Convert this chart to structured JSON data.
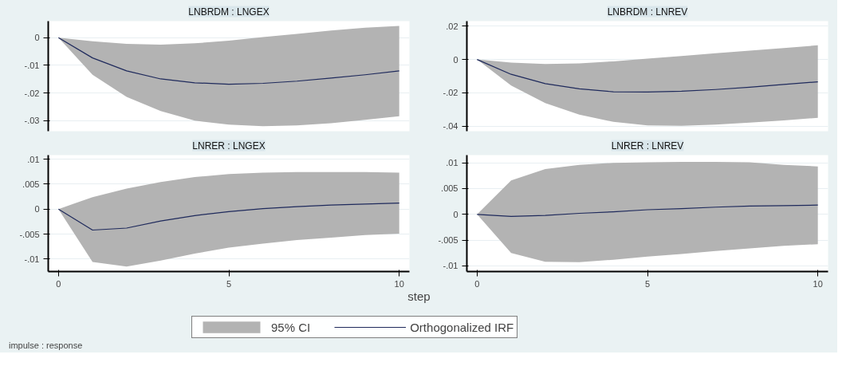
{
  "chart_data": [
    {
      "type": "line",
      "title": "LNBRDM : LNGEX",
      "x": [
        0,
        1,
        2,
        3,
        4,
        5,
        6,
        7,
        8,
        9,
        10
      ],
      "xlim": [
        -0.3,
        10.3
      ],
      "ylim": [
        -0.0338,
        0.006
      ],
      "yticks": [
        0,
        {
          "value": -0.01,
          "label": "-.01"
        },
        {
          "value": -0.02,
          "label": "-.02"
        },
        {
          "value": -0.03,
          "label": "-.03"
        }
      ],
      "tick_labels": "y",
      "grid": "y",
      "series": [
        {
          "type": "area",
          "color": "#b3b3b3",
          "values": [
            null,
            null,
            null,
            null,
            null,
            null,
            null,
            null,
            null,
            null,
            null
          ],
          "lower": [
            0,
            -0.0134,
            -0.0214,
            -0.0265,
            -0.03,
            -0.0314,
            -0.032,
            -0.0317,
            -0.0309,
            -0.0297,
            -0.0284
          ],
          "upper": [
            0,
            -0.0013,
            -0.0022,
            -0.0025,
            -0.002,
            -0.0011,
            0.0002,
            0.0014,
            0.0026,
            0.0036,
            0.0043
          ]
        },
        {
          "color": "#1f2a5c",
          "values": [
            0,
            -0.0073,
            -0.012,
            -0.0149,
            -0.0163,
            -0.0168,
            -0.0165,
            -0.0157,
            -0.0146,
            -0.0134,
            -0.012
          ]
        }
      ]
    },
    {
      "type": "line",
      "title": "LNBRDM : LNREV",
      "x": [
        0,
        1,
        2,
        3,
        4,
        5,
        6,
        7,
        8,
        9,
        10
      ],
      "xlim": [
        -0.3,
        10.3
      ],
      "ylim": [
        -0.043,
        0.023
      ],
      "yticks": [
        {
          "value": 0.02,
          "label": ".02"
        },
        0,
        {
          "value": -0.02,
          "label": "-.02"
        },
        {
          "value": -0.04,
          "label": "-.04"
        }
      ],
      "tick_labels": "y",
      "grid": "y",
      "series": [
        {
          "type": "area",
          "color": "#b3b3b3",
          "values": [
            null,
            null,
            null,
            null,
            null,
            null,
            null,
            null,
            null,
            null,
            null
          ],
          "lower": [
            0,
            -0.0156,
            -0.0261,
            -0.0331,
            -0.0374,
            -0.0395,
            -0.0398,
            -0.039,
            -0.0379,
            -0.0366,
            -0.035
          ],
          "upper": [
            0,
            -0.0019,
            -0.0027,
            -0.0024,
            -0.0011,
            0.0005,
            0.0021,
            0.0037,
            0.0053,
            0.0069,
            0.0085
          ]
        },
        {
          "color": "#1f2a5c",
          "values": [
            0,
            -0.0089,
            -0.0145,
            -0.0176,
            -0.0194,
            -0.0195,
            -0.019,
            -0.018,
            -0.0166,
            -0.015,
            -0.0134
          ]
        }
      ]
    },
    {
      "type": "line",
      "title": "LNRER : LNGEX",
      "xlabel": "step",
      "legend": "bottom",
      "annotations": [
        "impulse : response"
      ],
      "x": [
        0,
        1,
        2,
        3,
        4,
        5,
        6,
        7,
        8,
        9,
        10
      ],
      "xlim": [
        -0.3,
        10.3
      ],
      "xticks": [
        0,
        5,
        10
      ],
      "ylim": [
        -0.0125,
        0.0108
      ],
      "yticks": [
        {
          "value": 0.01,
          "label": ".01"
        },
        {
          "value": 0.005,
          "label": ".005"
        },
        0,
        {
          "value": -0.005,
          "label": "-.005"
        },
        {
          "value": -0.01,
          "label": "-.01"
        }
      ],
      "grid": "y",
      "series": [
        {
          "type": "area",
          "name": "95% CI",
          "color": "#b3b3b3",
          "values": [
            null,
            null,
            null,
            null,
            null,
            null,
            null,
            null,
            null,
            null,
            null
          ],
          "lower": [
            0,
            -0.0106,
            -0.0115,
            -0.0103,
            -0.0089,
            -0.0077,
            -0.0069,
            -0.0062,
            -0.0057,
            -0.0052,
            -0.0049
          ],
          "upper": [
            0,
            0.0024,
            0.0041,
            0.0054,
            0.0064,
            0.007,
            0.0073,
            0.0074,
            0.0074,
            0.0074,
            0.0073
          ]
        },
        {
          "name": "Orthogonalized IRF",
          "color": "#1f2a5c",
          "values": [
            0,
            -0.0042,
            -0.0038,
            -0.0024,
            -0.0013,
            -0.0005,
            0.0001,
            0.0005,
            0.0008,
            0.001,
            0.0012
          ]
        }
      ]
    },
    {
      "type": "line",
      "title": "LNRER : LNREV",
      "x": [
        0,
        1,
        2,
        3,
        4,
        5,
        6,
        7,
        8,
        9,
        10
      ],
      "xlim": [
        -0.3,
        10.3
      ],
      "xticks": [
        0,
        5,
        10
      ],
      "ylim": [
        -0.0111,
        0.0115
      ],
      "yticks": [
        {
          "value": 0.01,
          "label": ".01"
        },
        {
          "value": 0.005,
          "label": ".005"
        },
        0,
        {
          "value": -0.005,
          "label": "-.005"
        },
        {
          "value": -0.01,
          "label": "-.01"
        }
      ],
      "grid": "y",
      "series": [
        {
          "type": "area",
          "color": "#b3b3b3",
          "values": [
            null,
            null,
            null,
            null,
            null,
            null,
            null,
            null,
            null,
            null,
            null
          ],
          "lower": [
            0,
            -0.0075,
            -0.0092,
            -0.0093,
            -0.0088,
            -0.0082,
            -0.0077,
            -0.0071,
            -0.0066,
            -0.0061,
            -0.0058
          ],
          "upper": [
            0,
            0.0066,
            0.0088,
            0.0096,
            0.01,
            0.0101,
            0.0102,
            0.0102,
            0.0101,
            0.0096,
            0.0093
          ]
        },
        {
          "color": "#1f2a5c",
          "values": [
            0,
            -0.0004,
            -0.0002,
            0.0002,
            0.0005,
            0.0009,
            0.0011,
            0.0014,
            0.0016,
            0.0017,
            0.0018
          ]
        }
      ]
    }
  ]
}
